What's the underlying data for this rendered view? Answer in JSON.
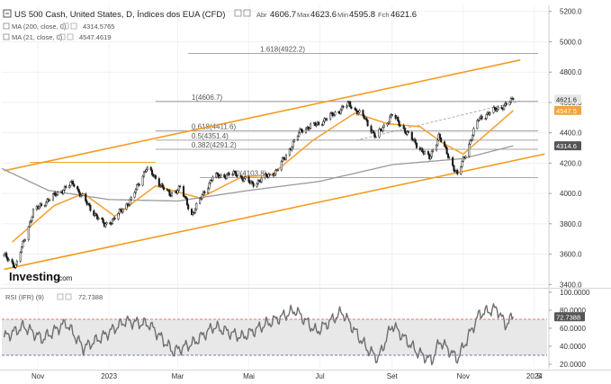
{
  "header": {
    "title": "US 500 Cash, United States, D, Índices dos EUA (CFD)",
    "open_label": "Abr",
    "open": "4606.7",
    "high_label": "Max",
    "high": "4623.6",
    "low_label": "Min",
    "low": "4595.8",
    "close_label": "Fch",
    "close": "4621.6",
    "ma200_label": "MA (200, close, 0)",
    "ma200_value": "4314.5765",
    "ma21_label": "MA (21, close, 0)",
    "ma21_value": "4547.4619"
  },
  "colors": {
    "candle": "#1a1a1a",
    "ma21": "#f2a33a",
    "ma200": "#9a9a9a",
    "channel": "#f39c1f",
    "fib": "#8a8a8a",
    "rsi": "#6f6f6f",
    "rsi_upper": "#d9534f",
    "rsi_lower": "#3f51b5",
    "tag_price": "#e6e6e6",
    "tag_ma21": "#f2a33a",
    "tag_ma200": "#555555"
  },
  "logo": {
    "text": "Investing",
    "suffix": ".com"
  },
  "chart_data": [
    {
      "type": "candlestick",
      "price_axis": {
        "ticks": [
          3400,
          3600,
          3800,
          4000,
          4200,
          4400,
          4600,
          4800,
          5000,
          5200
        ],
        "tick_labels": [
          "3400.0",
          "3600.0",
          "3800.0",
          "4000.0",
          "4200.0",
          "4400.0",
          "4600.0",
          "4800.0",
          "5000.0",
          "5200.0"
        ],
        "ylim": [
          3390,
          5240
        ]
      },
      "time_axis": {
        "tick_labels": [
          "Nov",
          "2023",
          "Mar",
          "Mai",
          "Jul",
          "Set",
          "Nov",
          "2024",
          "5"
        ],
        "tick_dates": [
          "2022-11-01",
          "2023-01-01",
          "2023-03-01",
          "2023-05-01",
          "2023-07-01",
          "2023-09-01",
          "2023-11-01",
          "2024-01-01",
          "2024-01-05"
        ],
        "xlim": [
          "2022-10-01",
          "2024-01-12"
        ]
      },
      "close_keypoints": [
        {
          "date": "2022-10-03",
          "close": 3590
        },
        {
          "date": "2022-10-13",
          "close": 3520
        },
        {
          "date": "2022-10-28",
          "close": 3880
        },
        {
          "date": "2022-11-10",
          "close": 3960
        },
        {
          "date": "2022-12-01",
          "close": 4070
        },
        {
          "date": "2022-12-15",
          "close": 3910
        },
        {
          "date": "2022-12-28",
          "close": 3790
        },
        {
          "date": "2023-01-05",
          "close": 3830
        },
        {
          "date": "2023-01-20",
          "close": 3960
        },
        {
          "date": "2023-02-02",
          "close": 4170
        },
        {
          "date": "2023-02-22",
          "close": 3990
        },
        {
          "date": "2023-03-03",
          "close": 4040
        },
        {
          "date": "2023-03-13",
          "close": 3860
        },
        {
          "date": "2023-03-31",
          "close": 4110
        },
        {
          "date": "2023-04-20",
          "close": 4130
        },
        {
          "date": "2023-05-04",
          "close": 4060
        },
        {
          "date": "2023-05-25",
          "close": 4150
        },
        {
          "date": "2023-06-15",
          "close": 4420
        },
        {
          "date": "2023-06-30",
          "close": 4460
        },
        {
          "date": "2023-07-26",
          "close": 4590
        },
        {
          "date": "2023-08-08",
          "close": 4500
        },
        {
          "date": "2023-08-18",
          "close": 4370
        },
        {
          "date": "2023-09-01",
          "close": 4520
        },
        {
          "date": "2023-09-21",
          "close": 4330
        },
        {
          "date": "2023-10-03",
          "close": 4230
        },
        {
          "date": "2023-10-11",
          "close": 4380
        },
        {
          "date": "2023-10-27",
          "close": 4120
        },
        {
          "date": "2023-11-14",
          "close": 4490
        },
        {
          "date": "2023-11-30",
          "close": 4560
        },
        {
          "date": "2023-12-07",
          "close": 4580
        },
        {
          "date": "2023-12-14",
          "close": 4621.6
        }
      ],
      "ma21_keypoints": [
        {
          "date": "2022-10-10",
          "close": 3680
        },
        {
          "date": "2022-11-15",
          "close": 3920
        },
        {
          "date": "2022-12-10",
          "close": 4000
        },
        {
          "date": "2023-01-06",
          "close": 3850
        },
        {
          "date": "2023-02-10",
          "close": 4050
        },
        {
          "date": "2023-03-20",
          "close": 3970
        },
        {
          "date": "2023-04-25",
          "close": 4110
        },
        {
          "date": "2023-05-20",
          "close": 4120
        },
        {
          "date": "2023-06-25",
          "close": 4350
        },
        {
          "date": "2023-07-31",
          "close": 4530
        },
        {
          "date": "2023-08-28",
          "close": 4460
        },
        {
          "date": "2023-09-25",
          "close": 4440
        },
        {
          "date": "2023-10-15",
          "close": 4330
        },
        {
          "date": "2023-11-01",
          "close": 4260
        },
        {
          "date": "2023-11-25",
          "close": 4420
        },
        {
          "date": "2023-12-14",
          "close": 4547.5
        }
      ],
      "ma200_keypoints": [
        {
          "date": "2022-10-01",
          "close": 4165
        },
        {
          "date": "2022-11-10",
          "close": 4020
        },
        {
          "date": "2023-01-01",
          "close": 3960
        },
        {
          "date": "2023-03-01",
          "close": 3950
        },
        {
          "date": "2023-05-01",
          "close": 4020
        },
        {
          "date": "2023-07-01",
          "close": 4080
        },
        {
          "date": "2023-09-01",
          "close": 4190
        },
        {
          "date": "2023-11-01",
          "close": 4230
        },
        {
          "date": "2023-12-14",
          "close": 4314.6
        }
      ],
      "channel": {
        "upper": [
          {
            "date": "2022-10-03",
            "price": 4150
          },
          {
            "date": "2023-12-20",
            "price": 4880
          }
        ],
        "lower": [
          {
            "date": "2022-10-03",
            "price": 3500
          },
          {
            "date": "2024-01-10",
            "price": 4260
          }
        ]
      },
      "trend_dashed": [
        {
          "date": "2023-08-01",
          "price": 4350
        },
        {
          "date": "2023-12-20",
          "price": 4610
        }
      ],
      "fib_levels": [
        {
          "label": "1.618(4922.2)",
          "price": 4922.2
        },
        {
          "label": "1(4606.7)",
          "price": 4606.7
        },
        {
          "label": "0.618(4411.6)",
          "price": 4411.6
        },
        {
          "label": "0.5(4351.4)",
          "price": 4351.4
        },
        {
          "label": "0.382(4291.2)",
          "price": 4291.2
        },
        {
          "label": "0(4103.8)",
          "price": 4103.8
        }
      ],
      "price_tags": [
        {
          "label": "4621.6",
          "price": 4621.6,
          "series": "price"
        },
        {
          "label": "4547.5",
          "price": 4547.5,
          "series": "ma21"
        },
        {
          "label": "4314.6",
          "price": 4314.6,
          "series": "ma200"
        }
      ]
    },
    {
      "type": "line",
      "title": "RSI (IFR) (9)",
      "current_value": "72.7388",
      "y_axis": {
        "ticks": [
          20,
          40,
          60,
          80,
          100
        ],
        "tick_labels": [
          "20.0000",
          "40.0000",
          "60.0000",
          "80.0000",
          "100.0000"
        ],
        "ylim": [
          17,
          102
        ]
      },
      "upper_level": 70,
      "lower_level": 30,
      "keypoints": [
        {
          "date": "2022-10-03",
          "rsi": 50
        },
        {
          "date": "2022-10-20",
          "rsi": 62
        },
        {
          "date": "2022-11-05",
          "rsi": 48
        },
        {
          "date": "2022-11-25",
          "rsi": 66
        },
        {
          "date": "2022-12-10",
          "rsi": 38
        },
        {
          "date": "2022-12-28",
          "rsi": 52
        },
        {
          "date": "2023-01-15",
          "rsi": 68
        },
        {
          "date": "2023-02-05",
          "rsi": 64
        },
        {
          "date": "2023-02-25",
          "rsi": 34
        },
        {
          "date": "2023-03-15",
          "rsi": 44
        },
        {
          "date": "2023-04-01",
          "rsi": 62
        },
        {
          "date": "2023-04-25",
          "rsi": 50
        },
        {
          "date": "2023-05-15",
          "rsi": 64
        },
        {
          "date": "2023-06-10",
          "rsi": 80
        },
        {
          "date": "2023-06-28",
          "rsi": 56
        },
        {
          "date": "2023-07-20",
          "rsi": 78
        },
        {
          "date": "2023-08-10",
          "rsi": 38
        },
        {
          "date": "2023-08-20",
          "rsi": 26
        },
        {
          "date": "2023-09-01",
          "rsi": 64
        },
        {
          "date": "2023-09-22",
          "rsi": 34
        },
        {
          "date": "2023-10-05",
          "rsi": 24
        },
        {
          "date": "2023-10-12",
          "rsi": 46
        },
        {
          "date": "2023-10-27",
          "rsi": 26
        },
        {
          "date": "2023-11-15",
          "rsi": 76
        },
        {
          "date": "2023-11-30",
          "rsi": 82
        },
        {
          "date": "2023-12-07",
          "rsi": 64
        },
        {
          "date": "2023-12-14",
          "rsi": 72.7
        }
      ]
    }
  ]
}
